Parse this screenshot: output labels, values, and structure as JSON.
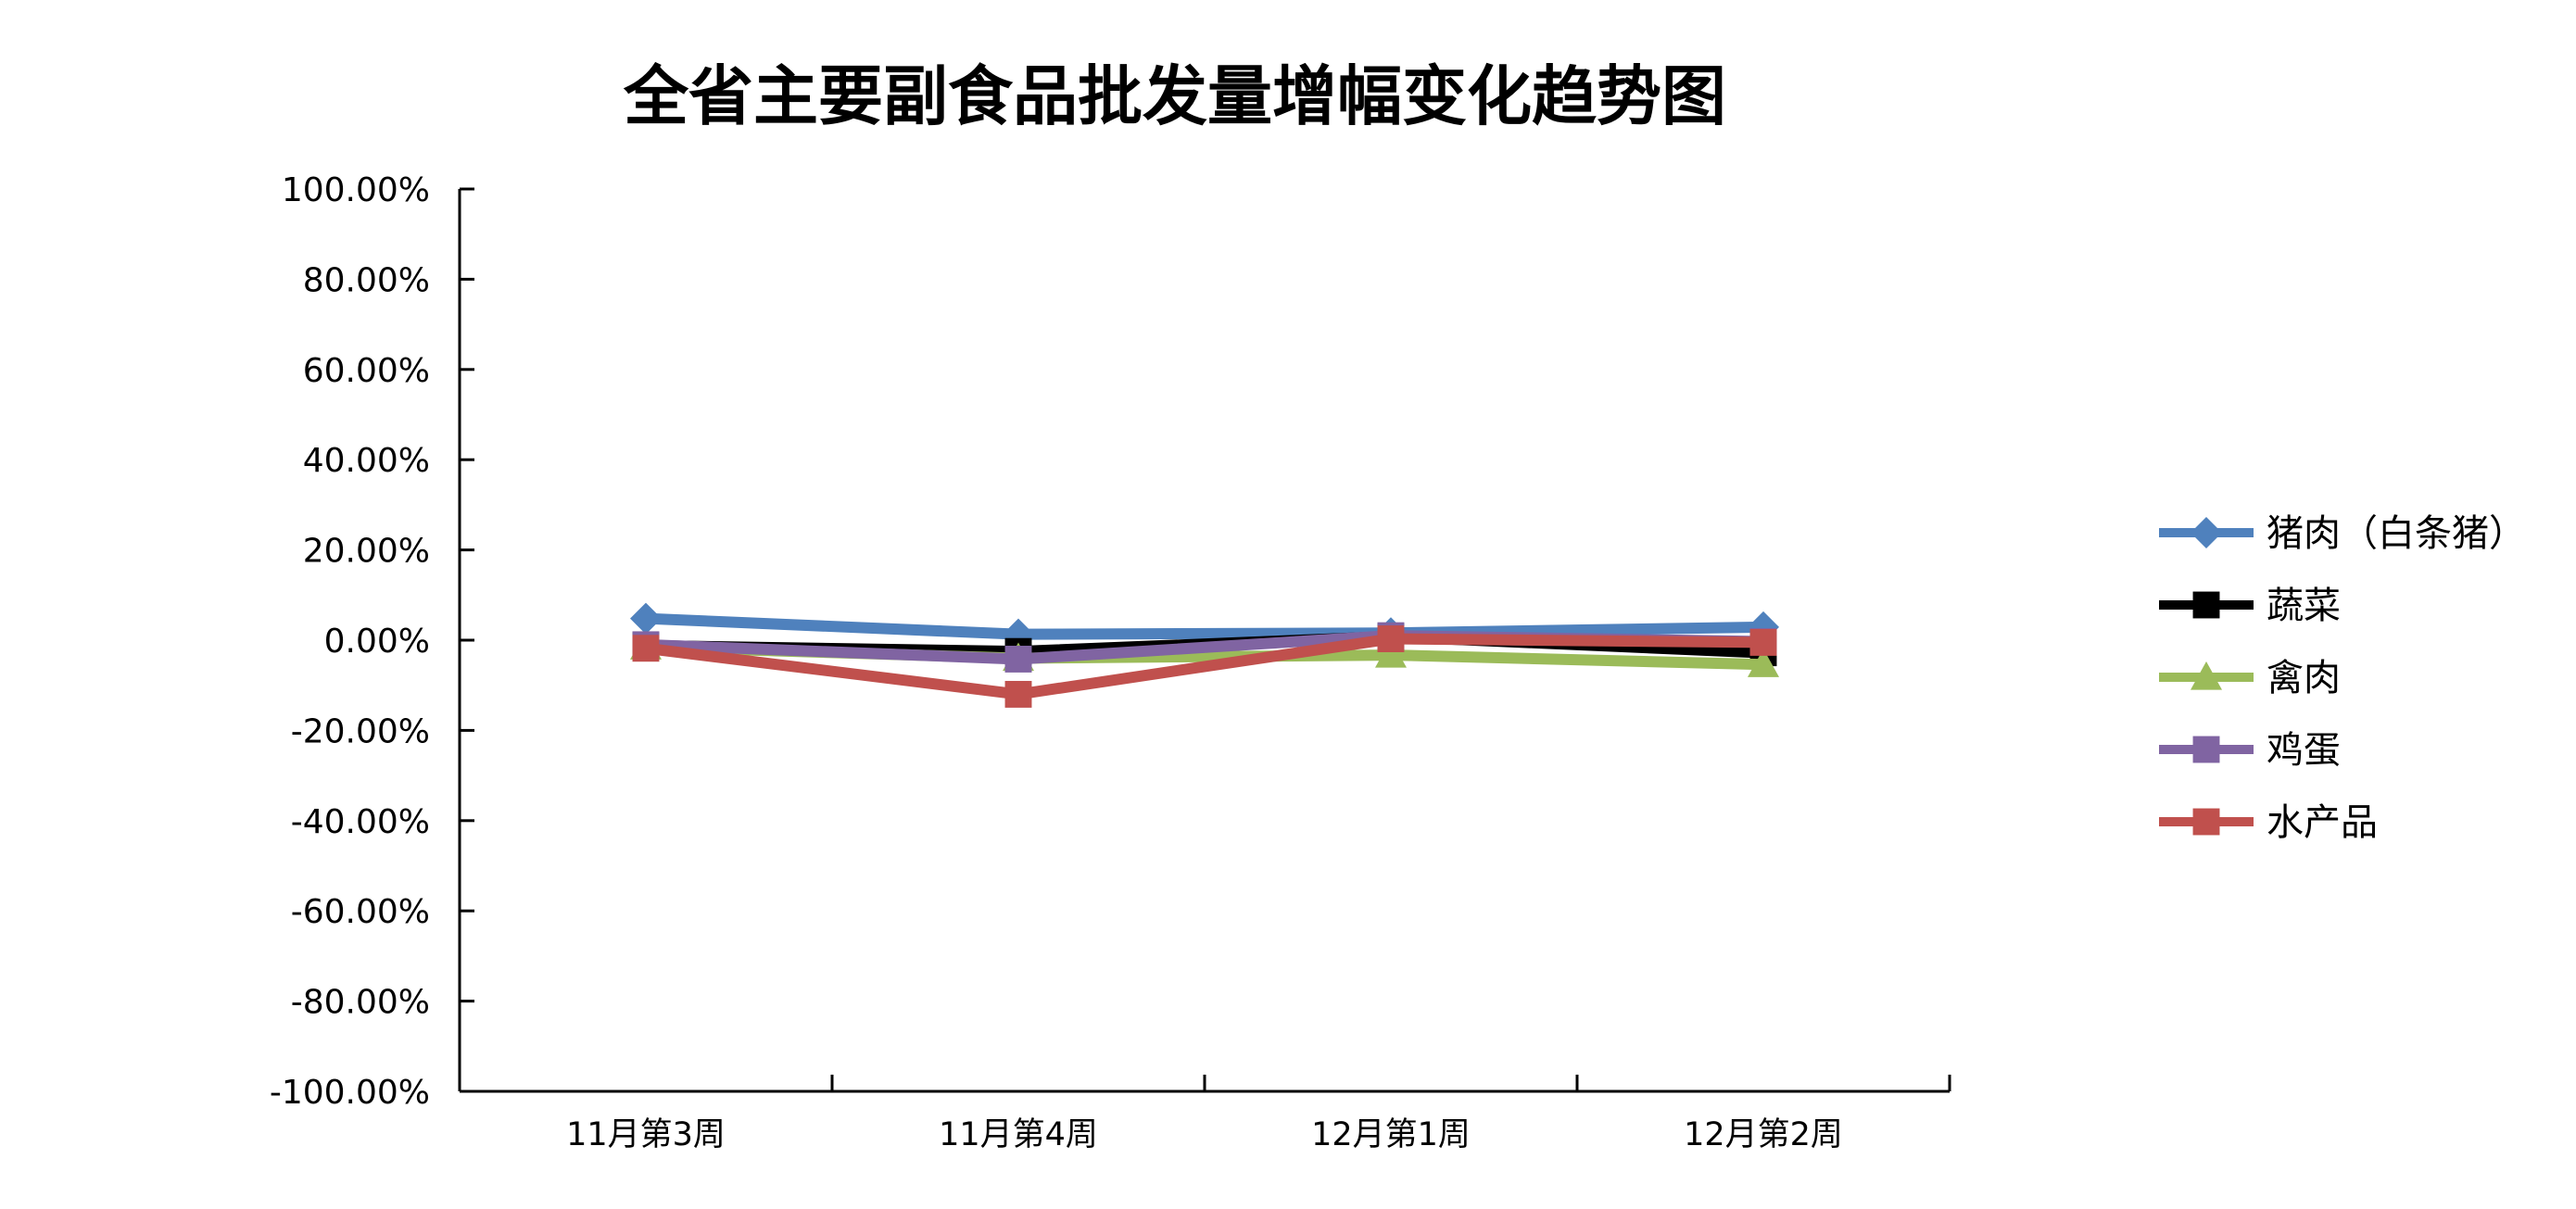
{
  "chart_data": {
    "type": "line",
    "title": "全省主要副食品批发量增幅变化趋势图",
    "xlabel": "",
    "ylabel": "",
    "categories": [
      "11月第3周",
      "11月第4周",
      "12月第1周",
      "12月第2周"
    ],
    "y_ticks": [
      "100.00%",
      "80.00%",
      "60.00%",
      "40.00%",
      "20.00%",
      "0.00%",
      "-20.00%",
      "-40.00%",
      "-60.00%",
      "-80.00%",
      "-100.00%"
    ],
    "ylim": [
      -100,
      100
    ],
    "grid": false,
    "legend_position": "right",
    "series": [
      {
        "name": "猪肉（白条猪）",
        "color": "#4f81bd",
        "marker": "diamond",
        "values": [
          4.8,
          1.3,
          1.6,
          2.9
        ]
      },
      {
        "name": "蔬菜",
        "color": "#000000",
        "marker": "square",
        "values": [
          -1.2,
          -2.5,
          0.8,
          -2.8
        ]
      },
      {
        "name": "禽肉",
        "color": "#9bbb59",
        "marker": "triangle",
        "values": [
          -1.5,
          -4.0,
          -3.3,
          -5.4
        ]
      },
      {
        "name": "鸡蛋",
        "color": "#8064a2",
        "marker": "square",
        "values": [
          -1.0,
          -4.2,
          1.0,
          -0.3
        ]
      },
      {
        "name": "水产品",
        "color": "#c0504d",
        "marker": "square",
        "values": [
          -1.8,
          -12.0,
          0.3,
          -0.5
        ]
      }
    ]
  }
}
